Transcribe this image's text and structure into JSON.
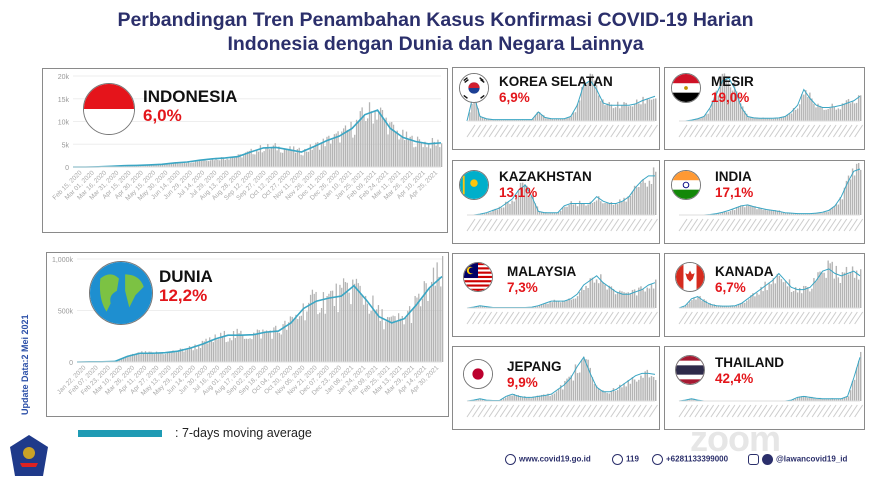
{
  "header": {
    "title_line1": "Perbandingan Tren Penambahan Kasus Konfirmasi COVID-19 Harian",
    "title_line2": "Indonesia dengan Dunia dan Negara Lainnya"
  },
  "side_label": "Update Data:2 Mei 2021",
  "legend": {
    "label": ": 7-days moving average",
    "color": "#1f9bb4"
  },
  "footer": {
    "website": "www.covid19.go.id",
    "hotline": "119",
    "whatsapp": "+6281133399000",
    "social": "@lawancovid19_id",
    "watermark": "zoom"
  },
  "colors": {
    "bar": "#b4b4b4",
    "line": "#3aa6c4",
    "pct": "#e3161b",
    "title": "#2b2f6b"
  },
  "chart_data": [
    {
      "type": "bar",
      "country": "INDONESIA",
      "pct": "6,0%",
      "flag": "indonesia-flag",
      "ylim": [
        0,
        20000
      ],
      "yticks": [
        "0",
        "5k",
        "10k",
        "15k",
        "20k"
      ],
      "ytick_values": [
        0,
        5000,
        10000,
        15000,
        20000
      ],
      "categories": [
        "Feb 15, 2020",
        "Mar 01, 2020",
        "Mar 16, 2020",
        "Mar 31, 2020",
        "Apr 15, 2020",
        "Apr 30, 2020",
        "May 15, 2020",
        "May 30, 2020",
        "Jun 14, 2020",
        "Jun 29, 2020",
        "Jul 14, 2020",
        "Jul 29, 2020",
        "Aug 13, 2020",
        "Aug 28, 2020",
        "Sep 12, 2020",
        "Sep 27, 2020",
        "Oct 12, 2020",
        "Oct 27, 2020",
        "Nov 11, 2020",
        "Nov 26, 2020",
        "Dec 11, 2020",
        "Dec 26, 2020",
        "Jan 10, 2021",
        "Jan 25, 2021",
        "Feb 09, 2021",
        "Feb 24, 2021",
        "Mar 11, 2021",
        "Mar 26, 2021",
        "Apr 10, 2021",
        "Apr 25, 2021"
      ],
      "moving_average": [
        0,
        0,
        50,
        150,
        300,
        350,
        450,
        600,
        900,
        1100,
        1500,
        1800,
        2000,
        2300,
        3300,
        4200,
        4300,
        3800,
        3300,
        4500,
        5800,
        6800,
        8500,
        11500,
        12500,
        8500,
        6500,
        5600,
        5100,
        5300
      ]
    },
    {
      "type": "bar",
      "country": "DUNIA",
      "pct": "12,2%",
      "flag": "globe",
      "ylim": [
        0,
        1000000
      ],
      "yticks": [
        "0",
        "500k",
        "1,000k"
      ],
      "ytick_values": [
        0,
        500000,
        1000000
      ],
      "categories": [
        "Jan 22, 2020",
        "Feb 07, 2020",
        "Feb 23, 2020",
        "Mar 10, 2020",
        "Mar 26, 2020",
        "Apr 11, 2020",
        "Apr 27, 2020",
        "May 13, 2020",
        "May 29, 2020",
        "Jun 14, 2020",
        "Jun 30, 2020",
        "Jul 16, 2020",
        "Aug 01, 2020",
        "Aug 17, 2020",
        "Sep 02, 2020",
        "Sep 18, 2020",
        "Oct 04, 2020",
        "Oct 20, 2020",
        "Nov 05, 2020",
        "Nov 21, 2020",
        "Dec 07, 2020",
        "Dec 23, 2020",
        "Jan 08, 2021",
        "Jan 24, 2021",
        "Feb 09, 2021",
        "Feb 25, 2021",
        "Mar 13, 2021",
        "Mar 29, 2021",
        "Apr 14, 2021",
        "Apr 30, 2021"
      ],
      "moving_average": [
        0,
        2000,
        2000,
        5000,
        55000,
        85000,
        85000,
        90000,
        105000,
        135000,
        175000,
        225000,
        260000,
        260000,
        265000,
        290000,
        300000,
        380000,
        520000,
        590000,
        620000,
        640000,
        740000,
        600000,
        440000,
        380000,
        420000,
        560000,
        720000,
        830000
      ]
    },
    {
      "type": "bar",
      "country": "KOREA SELATAN",
      "pct": "6,9%",
      "flag": "korea-flag",
      "trend": [
        0,
        0.6,
        0.1,
        0.05,
        0.03,
        0.03,
        0.03,
        0.03,
        0.03,
        0.03,
        0.03,
        0.2,
        0.08,
        0.05,
        0.05,
        0.05,
        0.1,
        0.35,
        0.8,
        0.9,
        0.7,
        0.4,
        0.35,
        0.35,
        0.35,
        0.35,
        0.38,
        0.45,
        0.5,
        0.55
      ]
    },
    {
      "type": "bar",
      "country": "MESIR",
      "pct": "19,0%",
      "flag": "egypt-flag",
      "trend": [
        0,
        0,
        0.02,
        0.05,
        0.1,
        0.3,
        0.6,
        0.9,
        0.95,
        0.7,
        0.3,
        0.1,
        0.07,
        0.06,
        0.06,
        0.06,
        0.07,
        0.1,
        0.2,
        0.35,
        0.7,
        0.5,
        0.35,
        0.3,
        0.3,
        0.32,
        0.35,
        0.4,
        0.45,
        0.55
      ]
    },
    {
      "type": "bar",
      "country": "KAZAKHSTAN",
      "pct": "13,1%",
      "flag": "kazakhstan-flag",
      "trend": [
        0,
        0,
        0.02,
        0.05,
        0.1,
        0.15,
        0.25,
        0.35,
        0.55,
        0.65,
        0.4,
        0.08,
        0.05,
        0.05,
        0.05,
        0.2,
        0.25,
        0.25,
        0.25,
        0.25,
        0.4,
        0.3,
        0.25,
        0.25,
        0.3,
        0.4,
        0.6,
        0.75,
        0.85,
        0.85
      ]
    },
    {
      "type": "bar",
      "country": "INDIA",
      "pct": "17,1%",
      "flag": "india-flag",
      "trend": [
        0,
        0,
        0,
        0,
        0,
        0.01,
        0.03,
        0.06,
        0.1,
        0.15,
        0.2,
        0.22,
        0.18,
        0.15,
        0.12,
        0.1,
        0.08,
        0.05,
        0.04,
        0.03,
        0.03,
        0.03,
        0.04,
        0.06,
        0.1,
        0.2,
        0.4,
        0.7,
        0.95,
        1
      ]
    },
    {
      "type": "bar",
      "country": "MALAYSIA",
      "pct": "7,3%",
      "flag": "malaysia-flag",
      "trend": [
        0,
        0.02,
        0.05,
        0.03,
        0.01,
        0.01,
        0.01,
        0.01,
        0.01,
        0.01,
        0.02,
        0.05,
        0.1,
        0.15,
        0.15,
        0.15,
        0.2,
        0.3,
        0.5,
        0.6,
        0.7,
        0.55,
        0.45,
        0.35,
        0.3,
        0.3,
        0.35,
        0.4,
        0.5,
        0.55
      ]
    },
    {
      "type": "bar",
      "country": "KANADA",
      "pct": "6,7%",
      "flag": "canada-flag",
      "trend": [
        0,
        0.05,
        0.2,
        0.25,
        0.15,
        0.08,
        0.05,
        0.04,
        0.04,
        0.05,
        0.1,
        0.2,
        0.3,
        0.4,
        0.5,
        0.6,
        0.75,
        0.6,
        0.45,
        0.4,
        0.4,
        0.45,
        0.6,
        0.8,
        0.85,
        0.75,
        0.7,
        0.75,
        0.8,
        0.7
      ]
    },
    {
      "type": "bar",
      "country": "JEPANG",
      "pct": "9,9%",
      "flag": "japan-flag",
      "trend": [
        0,
        0.02,
        0.05,
        0.02,
        0.01,
        0.01,
        0.1,
        0.15,
        0.1,
        0.08,
        0.08,
        0.1,
        0.12,
        0.15,
        0.25,
        0.35,
        0.5,
        0.75,
        0.95,
        0.6,
        0.3,
        0.2,
        0.2,
        0.25,
        0.35,
        0.45,
        0.55,
        0.6,
        0.6,
        0.58
      ]
    },
    {
      "type": "bar",
      "country": "THAILAND",
      "pct": "42,4%",
      "flag": "thailand-flag",
      "trend": [
        0,
        0.02,
        0.05,
        0.02,
        0,
        0,
        0,
        0,
        0,
        0,
        0,
        0,
        0,
        0,
        0,
        0,
        0,
        0,
        0.02,
        0.08,
        0.1,
        0.08,
        0.06,
        0.05,
        0.05,
        0.05,
        0.05,
        0.1,
        0.5,
        0.95
      ]
    }
  ]
}
